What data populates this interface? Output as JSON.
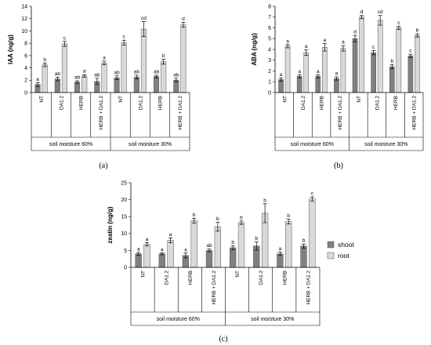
{
  "colors": {
    "shoot": "#808080",
    "root": "#d9d9d9",
    "axis": "#000000"
  },
  "legend": {
    "shoot_label": "shoot",
    "root_label": "root",
    "placement": "right"
  },
  "chart_data": [
    {
      "id": "a",
      "type": "bar",
      "panel_label": "(a)",
      "ylabel": "IAA (ng/g)",
      "ylim": [
        0,
        14
      ],
      "yticks": [
        0,
        2,
        4,
        6,
        8,
        10,
        12,
        14
      ],
      "categories": [
        "NT",
        "DA1.2",
        "HERB",
        "HERB + DA1.2",
        "NT",
        "DA1.2",
        "HERB",
        "HERB + DA1.2"
      ],
      "groups": [
        {
          "label": "soil  moisture 60%",
          "count": 4
        },
        {
          "label": "soil moisture 30%",
          "count": 4
        }
      ],
      "series": [
        {
          "name": "shoot",
          "values": [
            1.3,
            2.2,
            1.7,
            1.8,
            2.4,
            2.5,
            2.6,
            2.0
          ],
          "errors": [
            0.3,
            0.3,
            0.2,
            0.5,
            0.3,
            0.3,
            0.2,
            0.3
          ],
          "letters": [
            "a",
            "ab",
            "ab",
            "ab",
            "ab",
            "ab",
            "ab",
            "ab"
          ]
        },
        {
          "name": "root",
          "values": [
            4.5,
            7.9,
            2.7,
            4.8,
            8.1,
            10.3,
            5.0,
            11.0
          ],
          "errors": [
            0.3,
            0.4,
            0.2,
            0.3,
            0.4,
            1.2,
            0.4,
            0.4
          ],
          "letters": [
            "b",
            "c",
            "a",
            "a",
            "c",
            "cd",
            "b",
            "d"
          ]
        }
      ]
    },
    {
      "id": "b",
      "type": "bar",
      "panel_label": "(b)",
      "ylabel": "ABA (ng/g)",
      "ylim": [
        0,
        8
      ],
      "yticks": [
        0,
        1,
        2,
        3,
        4,
        5,
        6,
        7,
        8
      ],
      "categories": [
        "NT",
        "DA1.2",
        "HERB",
        "HERB + DA1.2",
        "NT",
        "DA1.2",
        "HERB",
        "HERB + DA1.2"
      ],
      "groups": [
        {
          "label": "soil  moisture 60%",
          "count": 4
        },
        {
          "label": "soil moisture 30%",
          "count": 4
        }
      ],
      "series": [
        {
          "name": "shoot",
          "values": [
            1.2,
            1.5,
            1.5,
            1.3,
            5.0,
            3.7,
            2.4,
            3.4
          ],
          "errors": [
            0.15,
            0.15,
            0.15,
            0.15,
            0.3,
            0.2,
            0.2,
            0.15
          ],
          "letters": [
            "a",
            "a",
            "a",
            "a",
            "d",
            "c",
            "b",
            "c"
          ]
        },
        {
          "name": "root",
          "values": [
            4.3,
            3.7,
            4.2,
            4.1,
            7.0,
            6.7,
            6.0,
            5.3
          ],
          "errors": [
            0.15,
            0.25,
            0.35,
            0.25,
            0.15,
            0.45,
            0.15,
            0.15
          ],
          "letters": [
            "a",
            "a",
            "a",
            "a",
            "d",
            "cd",
            "c",
            "b"
          ]
        }
      ]
    },
    {
      "id": "c",
      "type": "bar",
      "panel_label": "(c)",
      "ylabel": "zeatin (ng/g)",
      "ylim": [
        0,
        25
      ],
      "yticks": [
        0,
        5,
        10,
        15,
        20,
        25
      ],
      "categories": [
        "NT",
        "DA1.2",
        "HERB",
        "HERB + DA1.2",
        "NT",
        "DA1.2",
        "HERB",
        "HERB + DA1.2"
      ],
      "groups": [
        {
          "label": "soil  moisture 60%",
          "count": 4
        },
        {
          "label": "soil moisture 30%",
          "count": 4
        }
      ],
      "series": [
        {
          "name": "shoot",
          "values": [
            4.0,
            4.0,
            3.5,
            5.0,
            5.8,
            6.3,
            4.0,
            6.3
          ],
          "errors": [
            0.4,
            0.3,
            0.7,
            0.4,
            0.6,
            1.2,
            0.5,
            0.6
          ],
          "letters": [
            "a",
            "a",
            "a",
            "ab",
            "b",
            "b",
            "a",
            "b"
          ]
        },
        {
          "name": "root",
          "values": [
            6.8,
            8.0,
            13.8,
            12.0,
            13.2,
            16.0,
            13.5,
            20.2
          ],
          "errors": [
            0.5,
            0.7,
            0.7,
            1.3,
            0.5,
            2.8,
            0.7,
            0.6
          ],
          "letters": [
            "a",
            "a",
            "b",
            "b",
            "b",
            "b",
            "b",
            "c"
          ]
        }
      ]
    }
  ]
}
